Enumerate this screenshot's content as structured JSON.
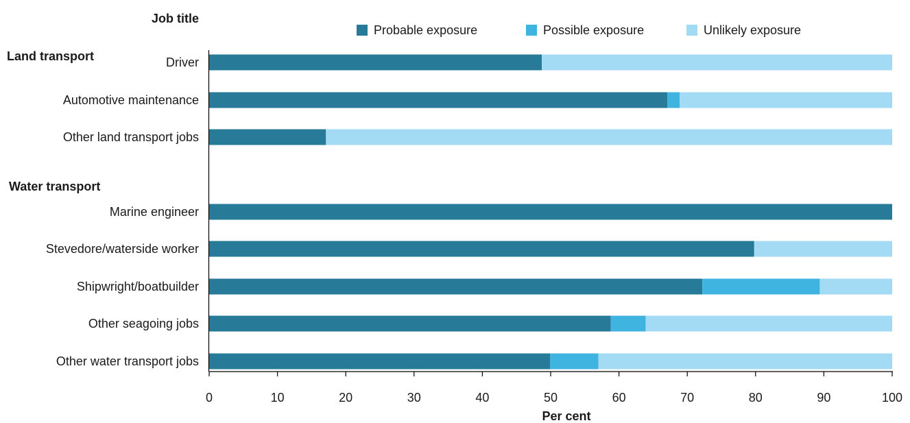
{
  "chart_data": {
    "type": "bar",
    "orientation": "horizontal",
    "stacked": true,
    "header": "Job title",
    "xlabel": "Per cent",
    "xlim": [
      0,
      100
    ],
    "xticks": [
      0,
      10,
      20,
      30,
      40,
      50,
      60,
      70,
      80,
      90,
      100
    ],
    "grid": false,
    "legend_position": "top",
    "groups": [
      {
        "label": "Land transport",
        "categories": [
          "Driver",
          "Automotive maintenance",
          "Other land transport jobs"
        ]
      },
      {
        "label": "Water transport",
        "categories": [
          "Marine engineer",
          "Stevedore/waterside worker",
          "Shipwright/boatbuilder",
          "Other seagoing jobs",
          "Other water transport jobs"
        ]
      }
    ],
    "categories": [
      "Driver",
      "Automotive maintenance",
      "Other land transport jobs",
      "Marine engineer",
      "Stevedore/waterside worker",
      "Shipwright/boatbuilder",
      "Other seagoing jobs",
      "Other water transport jobs"
    ],
    "series": [
      {
        "name": "Probable exposure",
        "color": "#277a98",
        "values": [
          48.7,
          67.1,
          17.1,
          100,
          79.8,
          72.2,
          58.8,
          49.9
        ]
      },
      {
        "name": "Possible exposure",
        "color": "#40b4e0",
        "values": [
          0,
          1.8,
          0,
          0,
          0,
          17.2,
          5.1,
          7.1
        ]
      },
      {
        "name": "Unlikely exposure",
        "color": "#a3daf4",
        "values": [
          51.3,
          31.1,
          82.9,
          0,
          20.2,
          10.6,
          36.1,
          43.0
        ]
      }
    ]
  }
}
